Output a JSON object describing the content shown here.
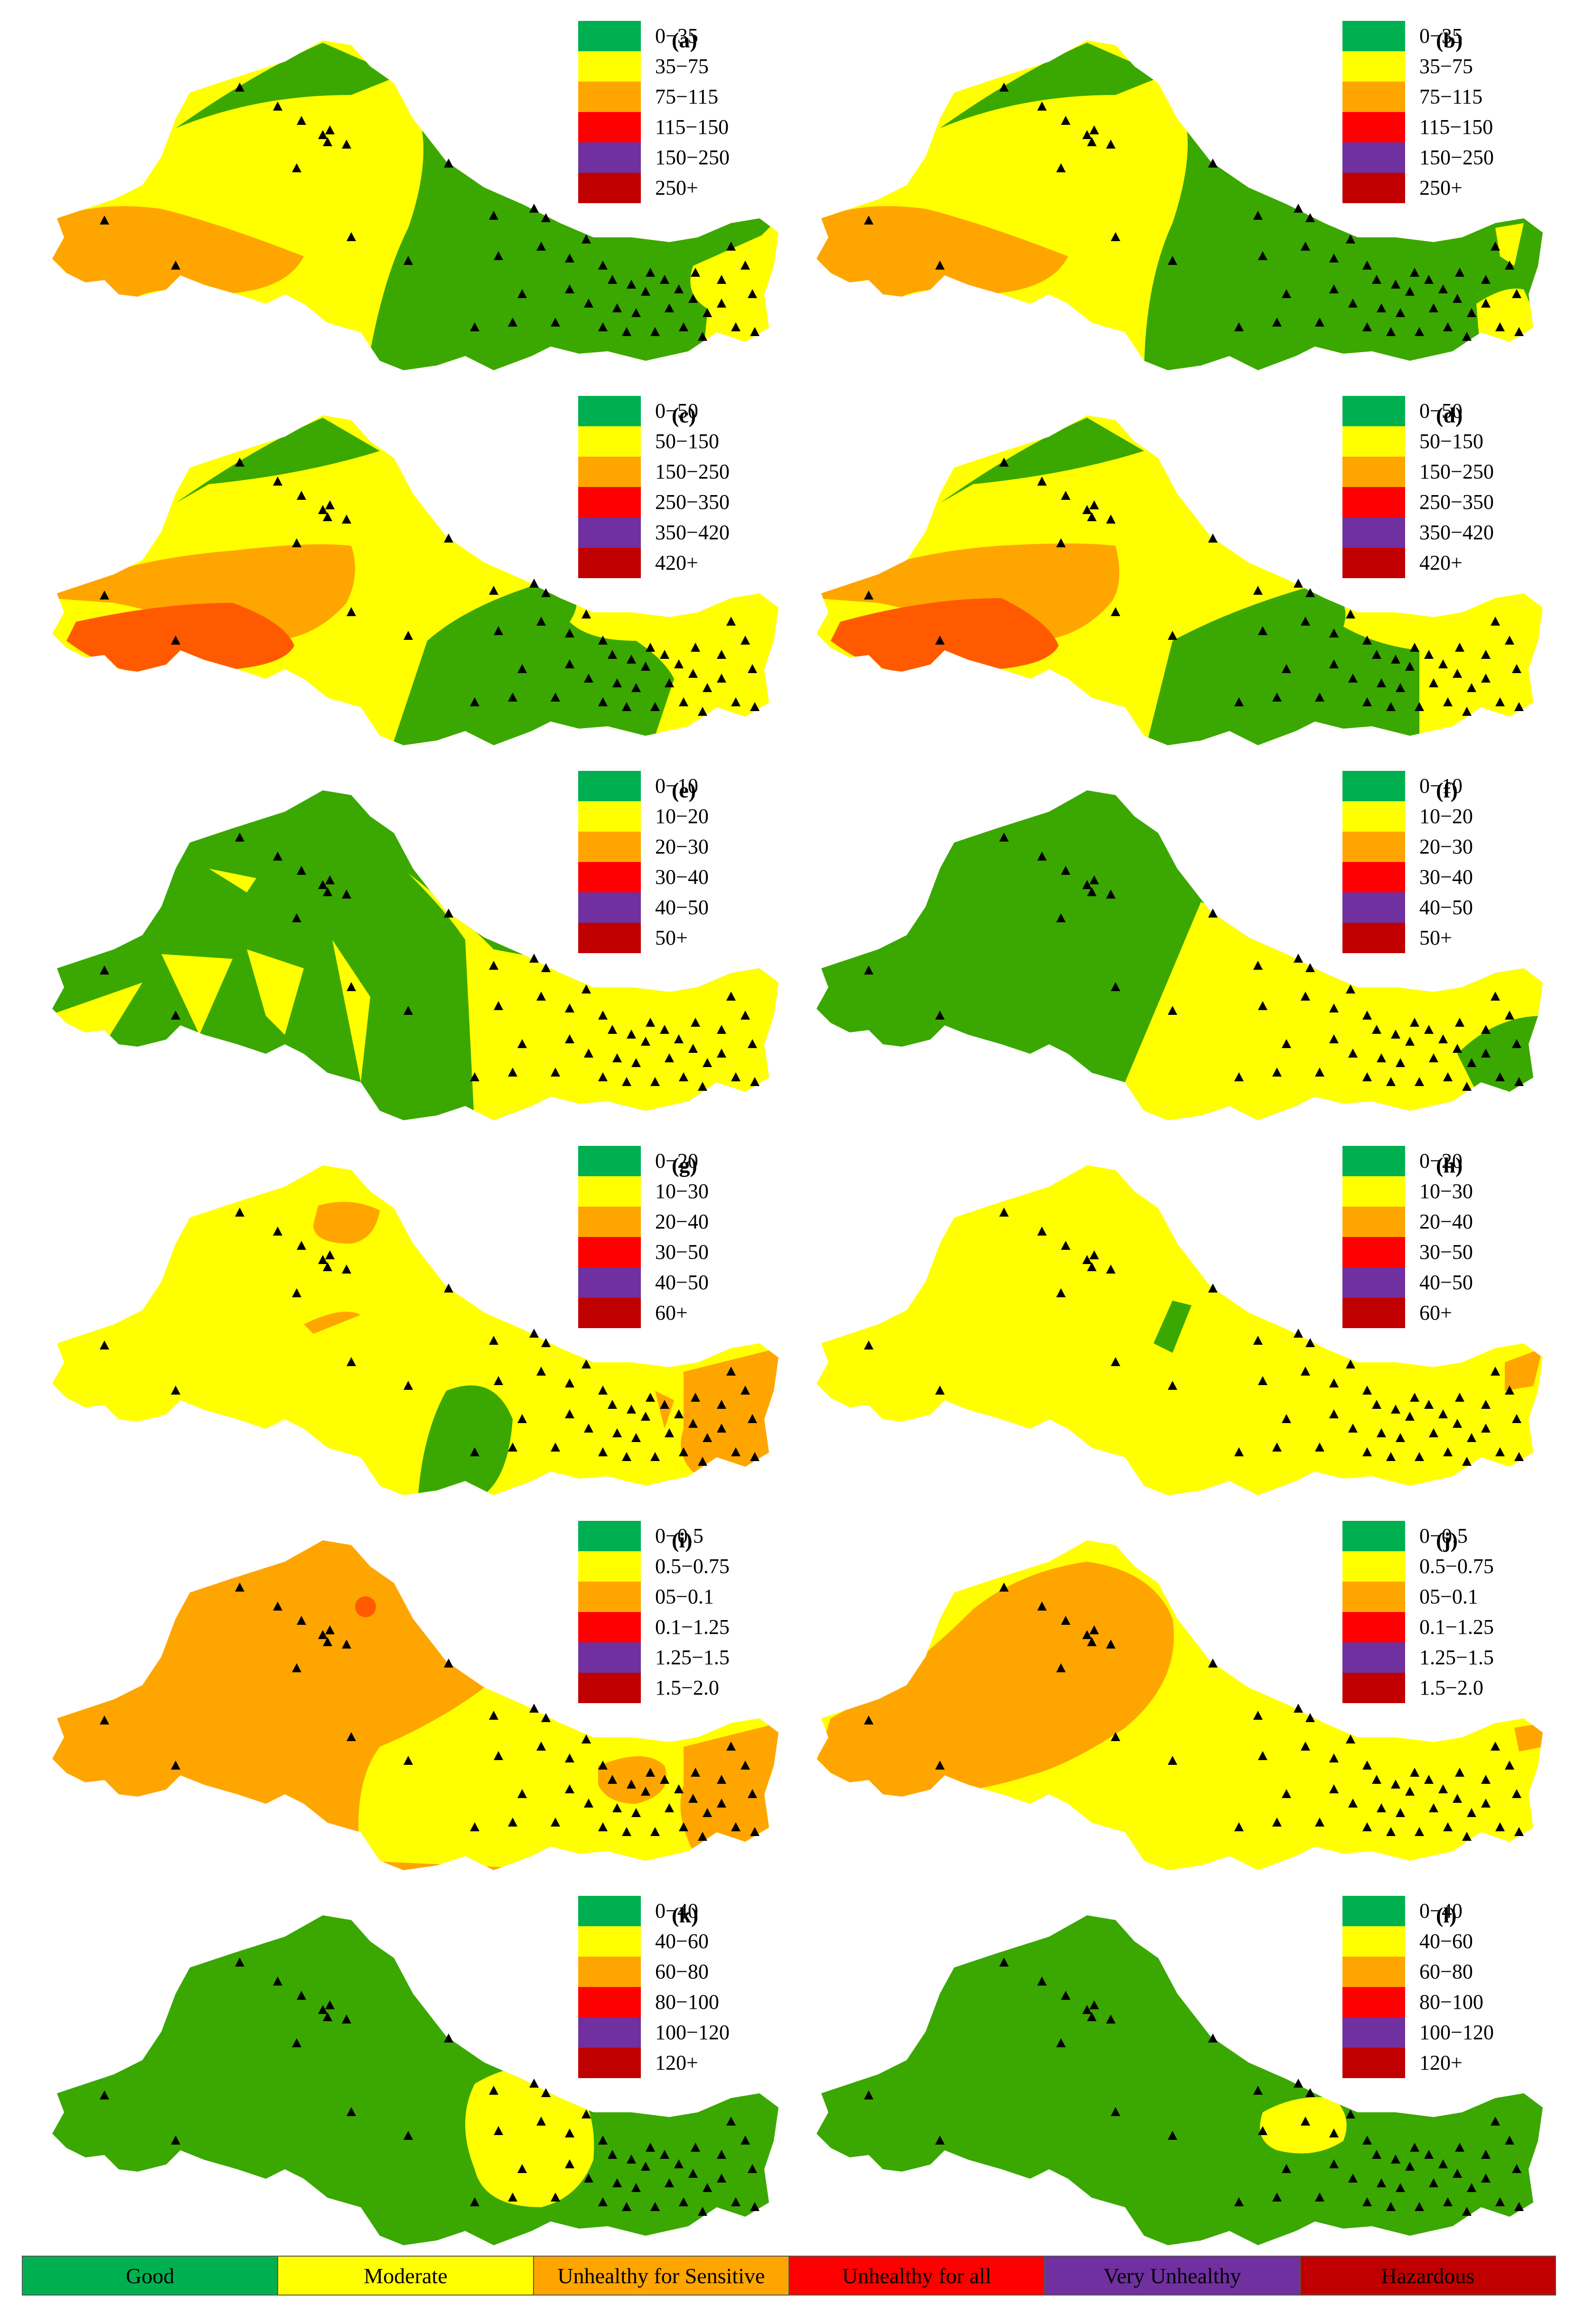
{
  "colors": {
    "good": "#00b050",
    "moderate": "#ffff00",
    "usg": "#ffa500",
    "unhealthy": "#ff0000",
    "very_unhealthy": "#7030a0",
    "hazardous": "#c00000",
    "map_green": "#3aa800",
    "map_yellow": "#ffff00",
    "map_orange": "#ffa500",
    "map_red": "#ff5a00"
  },
  "panels": [
    {
      "label": "(a)",
      "legend": [
        "0−35",
        "35−75",
        "75−115",
        "115−150",
        "150−250",
        "250+"
      ]
    },
    {
      "label": "(b)",
      "legend": [
        "0−35",
        "35−75",
        "75−115",
        "115−150",
        "150−250",
        "250+"
      ]
    },
    {
      "label": "(c)",
      "legend": [
        "0−50",
        "50−150",
        "150−250",
        "250−350",
        "350−420",
        "420+"
      ]
    },
    {
      "label": "(d)",
      "legend": [
        "0−50",
        "50−150",
        "150−250",
        "250−350",
        "350−420",
        "420+"
      ]
    },
    {
      "label": "(e)",
      "legend": [
        "0−10",
        "10−20",
        "20−30",
        "30−40",
        "40−50",
        "50+"
      ]
    },
    {
      "label": "(f)",
      "legend": [
        "0−10",
        "10−20",
        "20−30",
        "30−40",
        "40−50",
        "50+"
      ]
    },
    {
      "label": "(g)",
      "legend": [
        "0−20",
        "10−30",
        "20−40",
        "30−50",
        "40−50",
        "60+"
      ]
    },
    {
      "label": "(h)",
      "legend": [
        "0−20",
        "10−30",
        "20−40",
        "30−50",
        "40−50",
        "60+"
      ]
    },
    {
      "label": "(i)",
      "legend": [
        "0−0.5",
        "0.5−0.75",
        "05−0.1",
        "0.1−1.25",
        "1.25−1.5",
        "1.5−2.0"
      ]
    },
    {
      "label": "(j)",
      "legend": [
        "0−0.5",
        "0.5−0.75",
        "05−0.1",
        "0.1−1.25",
        "1.25−1.5",
        "1.5−2.0"
      ]
    },
    {
      "label": "(k)",
      "legend": [
        "0−40",
        "40−60",
        "60−80",
        "80−100",
        "100−120",
        "120+"
      ]
    },
    {
      "label": "(l)",
      "legend": [
        "0−40",
        "40−60",
        "60−80",
        "80−100",
        "100−120",
        "120+"
      ]
    }
  ],
  "categories": [
    "Good",
    "Moderate",
    "Unhealthy for Sensitive",
    "Unhealthy for all",
    "Very Unhealthy",
    "Hazardous"
  ]
}
